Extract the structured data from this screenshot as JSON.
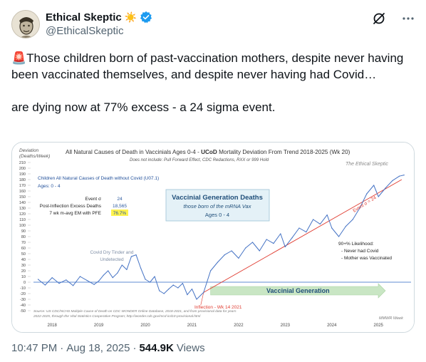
{
  "user": {
    "display_name": "Ethical Skeptic",
    "handle": "@EthicalSkeptic",
    "sun_emoji": "☀️"
  },
  "tweet": {
    "siren_emoji": "🚨",
    "line1": "Those children born of past-vaccination mothers, despite never having been vaccinated themselves, and despite never having had Covid…",
    "line2": "are dying now at 77% excess - a 24 sigma event."
  },
  "footer": {
    "time": "10:47 PM",
    "sep1": "·",
    "date": "Aug 18, 2025",
    "sep2": "·",
    "views_count": "544.9K",
    "views_label": "Views"
  },
  "colors": {
    "verified": "#1d9bf0",
    "series": "#4472c4",
    "trend": "#e03c31",
    "arrow": "#c9e6c4"
  },
  "chart_data": {
    "type": "line",
    "title_prefix": "All Natural Causes of Death in Vaccinials Ages 0-4 - ",
    "title_bold": "UCoD",
    "title_suffix": " Mortality Deviation From Trend  2018-2025 (Wk 20)",
    "subtitle": "Does not include: Pull Forward Effect, CDC Redactions, RXX or 999 Hold",
    "ylabel_line1": "Deviation",
    "ylabel_line2": "(Deaths/Week)",
    "watermark": "The Ethical Skeptic",
    "ylim": [
      -50,
      210
    ],
    "yticks": [
      -50,
      -40,
      -30,
      -20,
      -10,
      0,
      10,
      20,
      30,
      40,
      50,
      60,
      70,
      80,
      90,
      100,
      110,
      120,
      130,
      140,
      150,
      160,
      170,
      180,
      190,
      200,
      210
    ],
    "xlim": [
      2017.6,
      2025.7
    ],
    "xticks": [
      "2018",
      "2019",
      "2020",
      "2021",
      "2022",
      "2023",
      "2024",
      "2025"
    ],
    "legend_title": "Children All Natural Causes of Death without Covid (U07.1)",
    "legend_ages": "Ages: 0 - 4",
    "stats": [
      {
        "label": "Event σ",
        "value": "24"
      },
      {
        "label": "Post-Inflection Excess Deaths",
        "value": "18,565"
      },
      {
        "label": "7 wk m-avg EM with PFE",
        "value": "76.7%"
      }
    ],
    "box_title": "Vaccinial Generation Deaths",
    "box_line2": "those born of the mRNA Vax",
    "box_line3": "Ages 0 - 4",
    "annotation_dry_tinder_1": "Covid Dry Tinder and",
    "annotation_dry_tinder_2": "Undetected",
    "annotation_likelihood_title": "90+% Likelihood:",
    "annotation_likelihood_1": "- Never had Covid",
    "annotation_likelihood_2": "- Mother was Vaccinated",
    "annotation_event": "Event σ = 24",
    "annotation_inflection": "Inflection - Wk 14 2021",
    "arrow_label": "Vaccinial Generation",
    "source_line1": "Source: US CDC/NCHS Multiple Cause of Death on CDC WONDER Online Database, 2018-2021, and from provisional data for years",
    "source_line2": "2022-2025, through the Vital Statistics Cooperative Program; http://wonder.cdc.gov/mcd-icd10-provisional.html",
    "mmwr_label": "MMWR Week",
    "trend_line": {
      "x": [
        2021.25,
        2025.5
      ],
      "y": [
        -18,
        180
      ]
    },
    "series": [
      {
        "x": [
          2017.7,
          2017.85,
          2018.0,
          2018.15,
          2018.3,
          2018.45,
          2018.6,
          2018.75,
          2018.9,
          2019.0,
          2019.1,
          2019.2,
          2019.3,
          2019.4,
          2019.5,
          2019.6,
          2019.7,
          2019.8,
          2019.9,
          2020.0,
          2020.1,
          2020.2,
          2020.3,
          2020.4,
          2020.5,
          2020.6,
          2020.7,
          2020.8,
          2020.9,
          2021.0,
          2021.1,
          2021.25,
          2021.4,
          2021.55,
          2021.7,
          2021.85,
          2022.0,
          2022.15,
          2022.3,
          2022.45,
          2022.6,
          2022.75,
          2022.9,
          2023.0,
          2023.15,
          2023.3,
          2023.45,
          2023.6,
          2023.75,
          2023.9,
          2024.0,
          2024.15,
          2024.3,
          2024.45,
          2024.6,
          2024.75,
          2024.9,
          2025.0,
          2025.15,
          2025.3,
          2025.45,
          2025.55
        ],
        "y": [
          5,
          -5,
          8,
          -2,
          4,
          -6,
          10,
          3,
          -4,
          2,
          12,
          20,
          8,
          16,
          30,
          22,
          45,
          48,
          25,
          5,
          0,
          10,
          -15,
          -20,
          -12,
          -5,
          -10,
          -2,
          -22,
          -12,
          -30,
          -18,
          20,
          35,
          48,
          55,
          42,
          60,
          70,
          55,
          75,
          68,
          85,
          62,
          78,
          95,
          88,
          110,
          102,
          118,
          95,
          80,
          98,
          110,
          130,
          155,
          170,
          150,
          165,
          178,
          186,
          188
        ]
      }
    ]
  }
}
